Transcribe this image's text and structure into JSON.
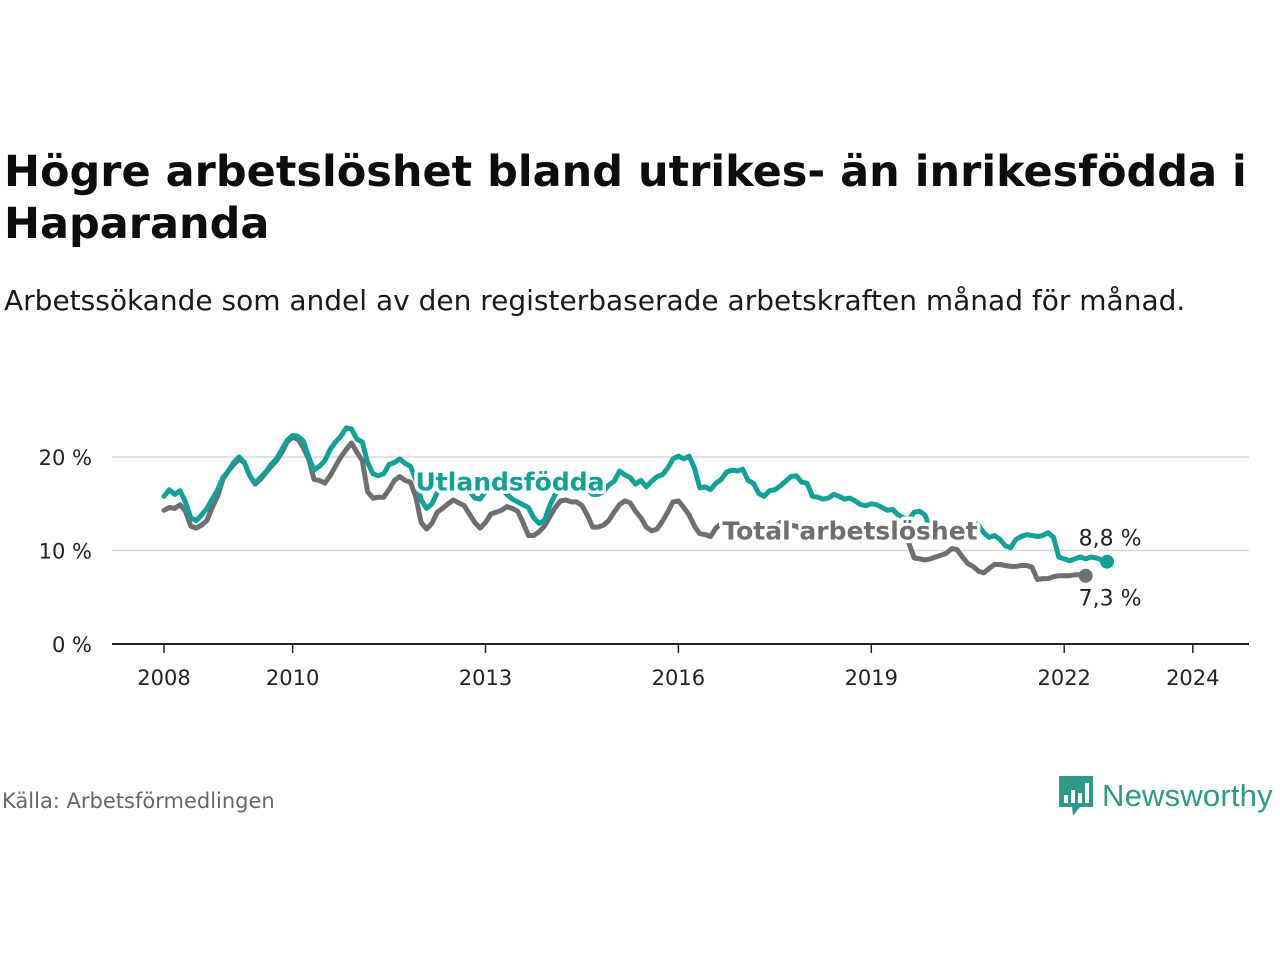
{
  "title": "Högre arbetslöshet bland utrikes- än inrikesfödda i Haparanda",
  "subtitle": "Arbetssökande som andel av den registerbaserade arbetskraften månad för månad.",
  "source": "Källa: Arbetsförmedlingen",
  "brand": "Newsworthy",
  "colors": {
    "utlandsfodda": "#12a197",
    "total": "#6f6e73",
    "axis": "#222222",
    "grid": "#d8d8d8",
    "brand": "#2f9988"
  },
  "chart_data": {
    "type": "line",
    "title": "Högre arbetslöshet bland utrikes- än inrikesfödda i Haparanda",
    "xlabel": "",
    "ylabel": "",
    "x_start": "2008-01",
    "ylim": [
      0,
      25
    ],
    "yticks": [
      0,
      10,
      20
    ],
    "ytick_labels": [
      "0 %",
      "10 %",
      "20 %"
    ],
    "xticks": [
      2008,
      2010,
      2013,
      2016,
      2019,
      2022,
      2024
    ],
    "xtick_labels": [
      "2008",
      "2010",
      "2013",
      "2016",
      "2019",
      "2022",
      "2024"
    ],
    "grid": true,
    "series": [
      {
        "name": "Utlandsfödda",
        "label": "Utlandsfödda",
        "end_label": "8,8 %",
        "values": [
          15.8,
          16.5,
          16,
          16.4,
          15.2,
          13.5,
          13.2,
          13.8,
          14.5,
          15.5,
          16.5,
          17.8,
          18.5,
          19.4,
          20,
          19.4,
          18,
          17.2,
          17.8,
          18.4,
          19.2,
          19.8,
          20.8,
          21.8,
          22.3,
          22.2,
          21.7,
          20,
          18.6,
          19,
          19.6,
          20.8,
          21.6,
          22.2,
          23.1,
          23,
          21.9,
          21.6,
          19.4,
          18.2,
          18,
          18.2,
          19.2,
          19.4,
          19.8,
          19.3,
          19,
          17.6,
          15.4,
          14.5,
          15,
          16.2,
          16.7,
          17.3,
          18.1,
          17.8,
          17.5,
          16.4,
          15.6,
          15.5,
          16.3,
          17.6,
          17.2,
          16.6,
          16,
          15.5,
          15.2,
          14.9,
          14.6,
          13.5,
          12.9,
          13.2,
          14.8,
          16,
          16.7,
          16.8,
          16.9,
          16.7,
          17,
          16.5,
          16,
          16,
          16.3,
          17,
          17.4,
          18.5,
          18.1,
          17.8,
          17.1,
          17.5,
          16.8,
          17.4,
          17.9,
          18.1,
          18.8,
          19.8,
          20.1,
          19.8,
          20.1,
          18.8,
          16.7,
          16.8,
          16.5,
          17.2,
          17.6,
          18.4,
          18.6,
          18.5,
          18.7,
          17.5,
          17.2,
          16.1,
          15.8,
          16.4,
          16.5,
          16.9,
          17.4,
          17.9,
          18,
          17.3,
          17.2,
          15.8,
          15.7,
          15.5,
          15.6,
          16,
          15.8,
          15.5,
          15.6,
          15.3,
          14.9,
          14.8,
          15,
          14.9,
          14.6,
          14.3,
          14.4,
          13.8,
          13.5,
          13.3,
          14.1,
          14.2,
          13.8,
          12.4,
          11.6,
          11.5,
          11.6,
          11.5,
          11.8,
          11.7,
          12.3,
          13,
          12.7,
          11.9,
          11.4,
          11.6,
          11.2,
          10.5,
          10.3,
          11.2,
          11.5,
          11.7,
          11.6,
          11.5,
          11.6,
          11.9,
          11.4,
          9.3,
          9.1,
          8.9,
          9.1,
          9.3,
          9.1,
          9.3,
          9.2,
          9,
          8.8
        ]
      },
      {
        "name": "Total arbetslöshet",
        "label": "Total arbetslöshet",
        "end_label": "7,3 %",
        "values": [
          14.3,
          14.6,
          14.5,
          14.9,
          14.2,
          12.6,
          12.4,
          12.7,
          13.2,
          14.6,
          15.8,
          17.6,
          18.5,
          19.2,
          19.8,
          19.4,
          18,
          17.1,
          17.6,
          18.3,
          19,
          19.6,
          20.5,
          21.6,
          22.1,
          21.9,
          21,
          19.8,
          17.6,
          17.5,
          17.2,
          18,
          19,
          20,
          20.8,
          21.5,
          20.5,
          19.6,
          16.3,
          15.6,
          15.7,
          15.7,
          16.5,
          17.5,
          17.9,
          17.5,
          17.3,
          15.7,
          13,
          12.3,
          12.9,
          14.1,
          14.5,
          15,
          15.4,
          15.1,
          14.8,
          13.9,
          13,
          12.4,
          13,
          13.9,
          14.1,
          14.3,
          14.7,
          14.5,
          14.2,
          13,
          11.6,
          11.6,
          12,
          12.6,
          13.6,
          14.6,
          15.3,
          15.4,
          15.2,
          15.2,
          14.8,
          13.8,
          12.5,
          12.5,
          12.7,
          13.2,
          14.1,
          14.9,
          15.3,
          15.1,
          14.2,
          13.5,
          12.5,
          12.1,
          12.3,
          13.1,
          14.1,
          15.2,
          15.3,
          14.6,
          13.8,
          12.6,
          11.8,
          11.7,
          11.5,
          12.4,
          12.9,
          13.1,
          13,
          12.4,
          12,
          11.6,
          11.5,
          11.4,
          11.6,
          12,
          12.6,
          13,
          12.9,
          12.7,
          12.6,
          12.2,
          12.2,
          12,
          12.1,
          12.2,
          12.3,
          12.1,
          11.8,
          11.5,
          11.3,
          11.2,
          11.1,
          11.5,
          11.7,
          12,
          11.9,
          11.8,
          11.6,
          12.1,
          11.5,
          10.8,
          9.2,
          9.1,
          9,
          9.1,
          9.3,
          9.5,
          9.7,
          10.2,
          10.1,
          9.3,
          8.6,
          8.3,
          7.8,
          7.6,
          8.1,
          8.5,
          8.5,
          8.4,
          8.3,
          8.3,
          8.4,
          8.4,
          8.2,
          6.9,
          7,
          7,
          7.2,
          7.3,
          7.3,
          7.3,
          7.4,
          7.4,
          7.3
        ]
      }
    ]
  }
}
